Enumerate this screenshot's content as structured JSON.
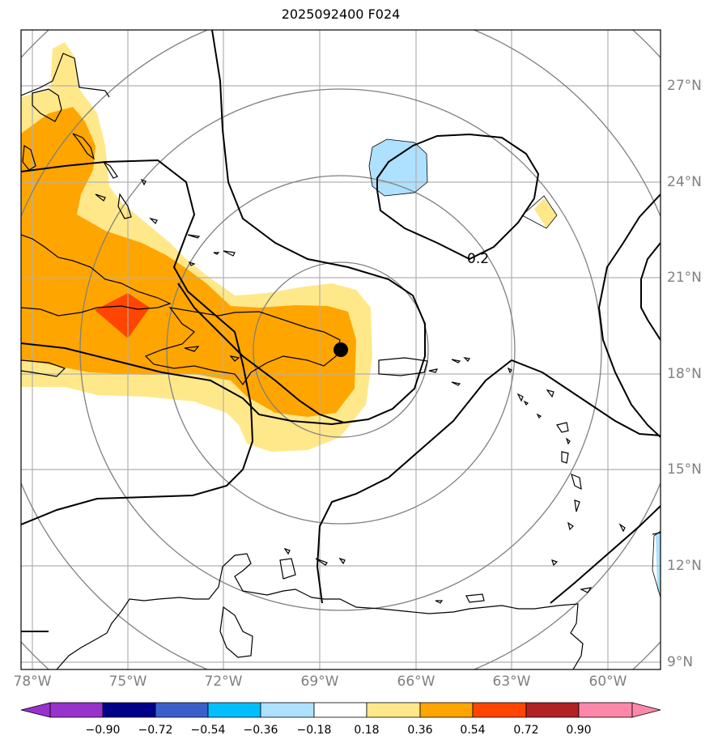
{
  "title": "2025092400 F024",
  "colors": {
    "grid": "#b0b0b0",
    "rings": "#808080",
    "coast": "#000000",
    "contour": "#000000",
    "lightyellow": "#ffe88a",
    "orange": "#ffa500",
    "redorange": "#ff4500",
    "lightblue": "#aee0ff"
  },
  "map": {
    "lon_labels": [
      "78°W",
      "75°W",
      "72°W",
      "69°W",
      "66°W",
      "63°W",
      "60°W"
    ],
    "lat_labels": [
      "27°N",
      "24°N",
      "21°N",
      "18°N",
      "15°N",
      "12°N",
      "9°N"
    ],
    "contour_label": "0.2",
    "center_marker": "storm-center",
    "range_rings": 5
  },
  "colorbar": {
    "ticks": [
      "−0.90",
      "−0.72",
      "−0.54",
      "−0.36",
      "−0.18",
      "0.18",
      "0.36",
      "0.54",
      "0.72",
      "0.90"
    ],
    "colors": [
      "#9932cc",
      "#00008b",
      "#3a5fcd",
      "#00bfff",
      "#aee0ff",
      "#ffffff",
      "#ffe88a",
      "#ffa500",
      "#ff4500",
      "#b22222",
      "#ff88aa",
      "#ff88aa"
    ]
  }
}
